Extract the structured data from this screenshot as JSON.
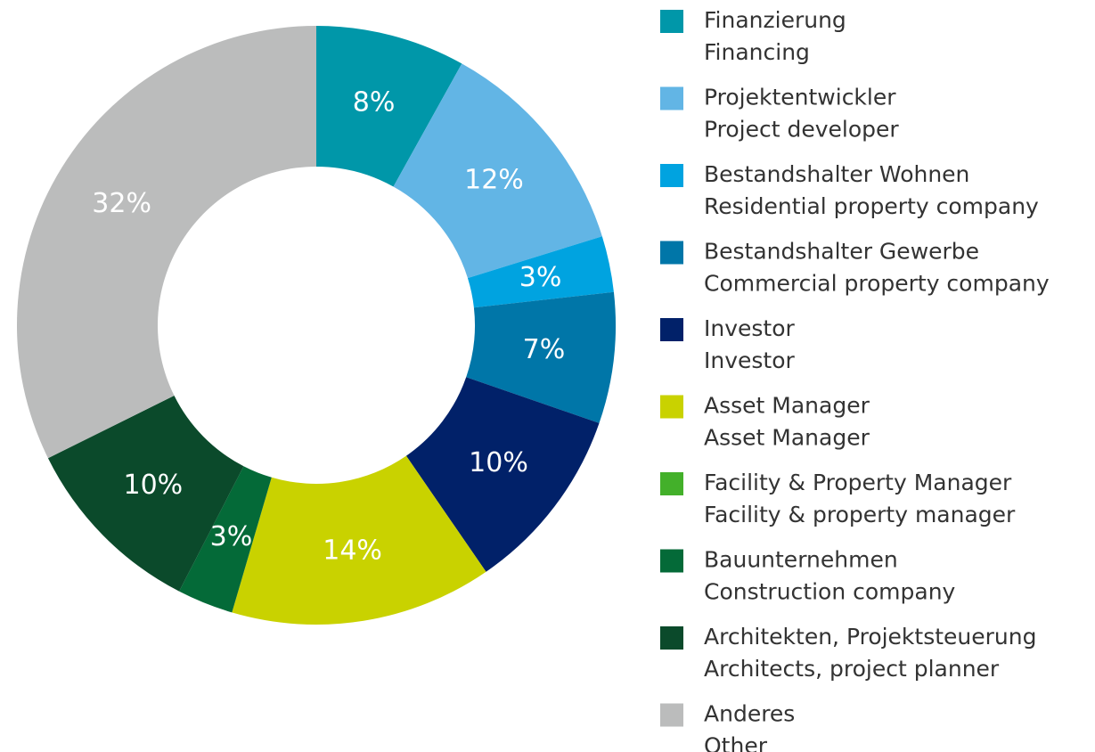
{
  "chart_data": {
    "type": "donut",
    "categories": [
      [
        "Finanzierung",
        "Financing"
      ],
      [
        "Projektentwickler",
        "Project developer"
      ],
      [
        "Bestandshalter Wohnen",
        "Residential property company"
      ],
      [
        "Bestandshalter Gewerbe",
        "Commercial property company"
      ],
      [
        "Investor",
        "Investor"
      ],
      [
        "Asset Manager",
        "Asset Manager"
      ],
      [
        "Facility & Property Manager",
        "Facility & property manager"
      ],
      [
        "Bauunternehmen",
        "Construction company"
      ],
      [
        "Architekten, Projektsteuerung",
        "Architects, project planner"
      ],
      [
        "Anderes",
        "Other"
      ]
    ],
    "values": [
      8,
      12,
      3,
      7,
      10,
      14,
      0,
      3,
      10,
      32
    ],
    "value_labels": [
      "8%",
      "12%",
      "3%",
      "7%",
      "10%",
      "14%",
      null,
      "3%",
      "10%",
      "32%"
    ],
    "colors": [
      "#0097a9",
      "#62b5e5",
      "#00a3e0",
      "#0076a8",
      "#012169",
      "#c9d200",
      "#43b02a",
      "#046a38",
      "#0b4a2b",
      "#bbbcbc"
    ],
    "legend": "right"
  }
}
